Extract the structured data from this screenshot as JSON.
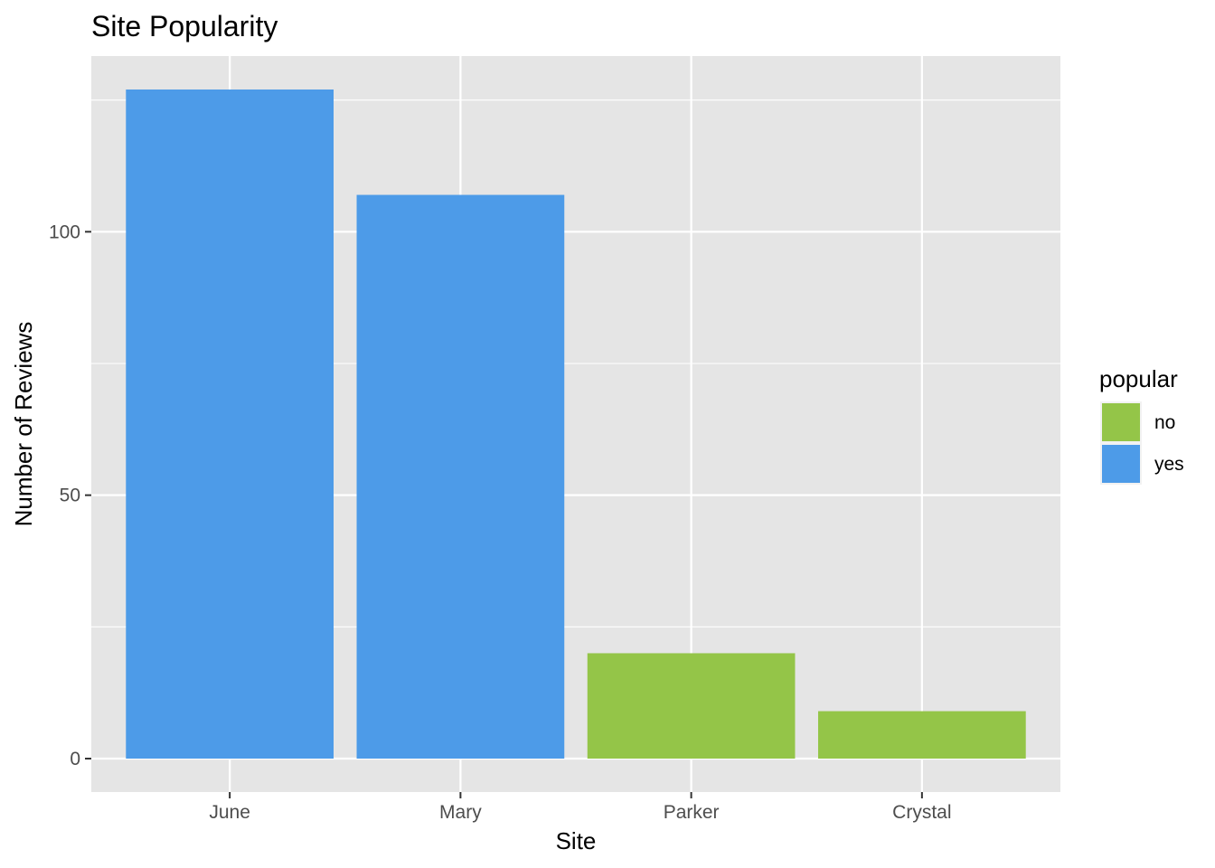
{
  "chart_data": {
    "type": "bar",
    "title": "Site Popularity",
    "xlabel": "Site",
    "ylabel": "Number of Reviews",
    "categories": [
      "June",
      "Mary",
      "Parker",
      "Crystal"
    ],
    "values": [
      127,
      107,
      20,
      9
    ],
    "groups": [
      "yes",
      "yes",
      "no",
      "no"
    ],
    "ylim": [
      -6.35,
      133.35
    ],
    "yticks": [
      0,
      50,
      100
    ],
    "ytick_labels": [
      "0",
      "50",
      "100"
    ],
    "grid": true,
    "legend": {
      "title": "popular",
      "placement": "right",
      "entries": [
        {
          "label": "no",
          "color": "#94c548"
        },
        {
          "label": "yes",
          "color": "#4d9be8"
        }
      ]
    },
    "colors": {
      "yes": "#4d9be8",
      "no": "#94c548",
      "panel": "#e5e5e5",
      "grid": "#ffffff"
    }
  }
}
